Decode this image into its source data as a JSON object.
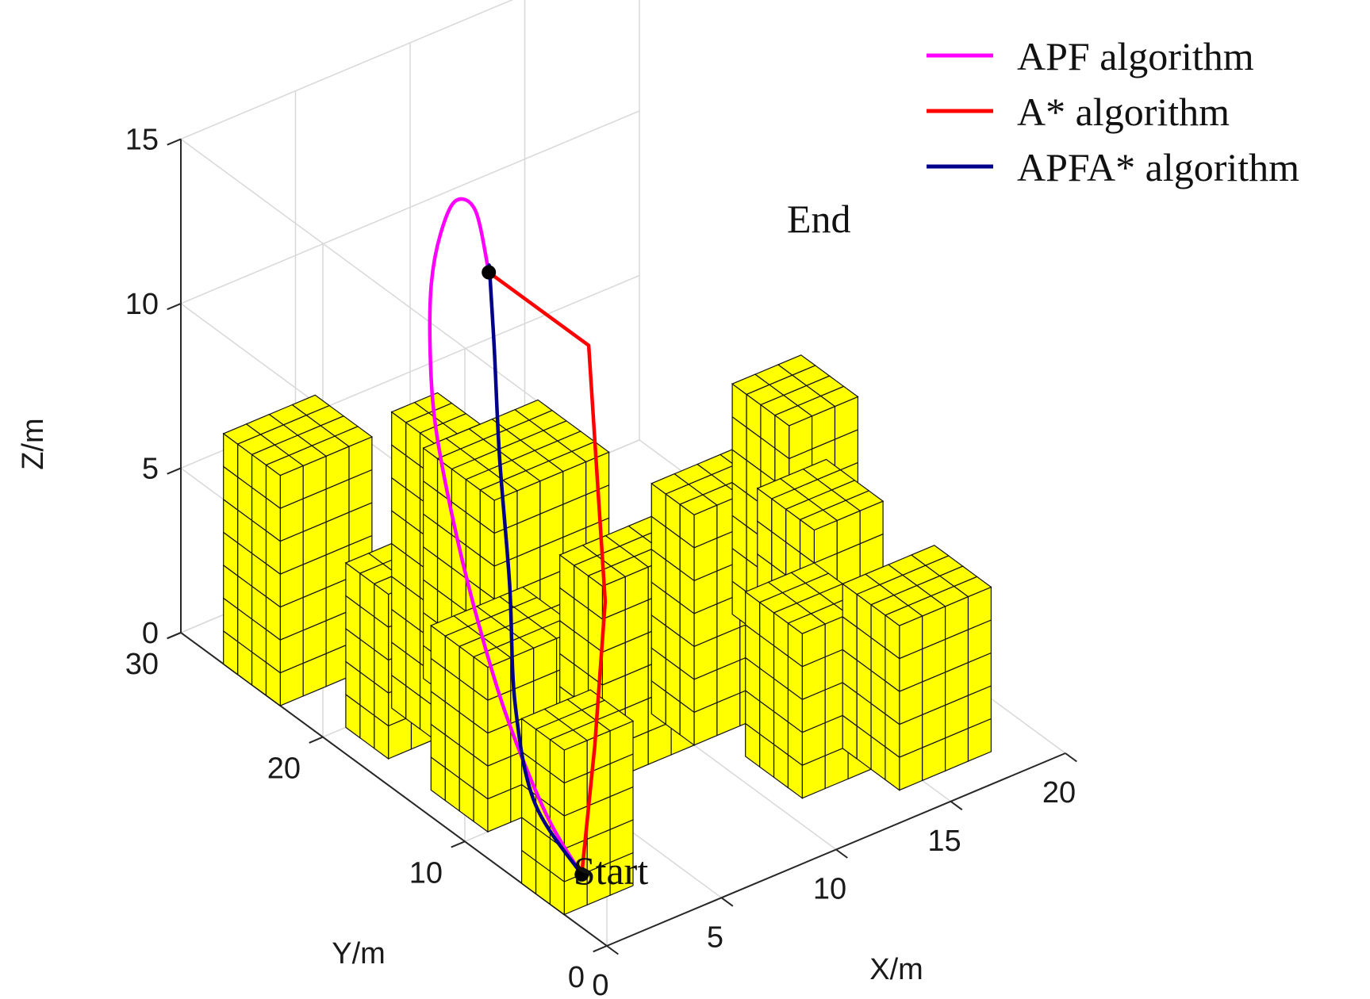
{
  "chart_data": {
    "type": "line3d",
    "xlabel": "X/m",
    "ylabel": "Y/m",
    "zlabel": "Z/m",
    "xlim": [
      0,
      20
    ],
    "ylim": [
      0,
      30
    ],
    "zlim": [
      0,
      15
    ],
    "xticks": [
      "0",
      "5",
      "10",
      "15",
      "20"
    ],
    "yticks": [
      "0",
      "10",
      "20",
      "30"
    ],
    "zticks": [
      "0",
      "5",
      "10",
      "15"
    ],
    "grid": true,
    "legend_position": "top-right",
    "obstacle_color": "#ffff00",
    "obstacles": [
      {
        "x": [
          0,
          3
        ],
        "y": [
          3,
          6
        ],
        "z": [
          0,
          5
        ]
      },
      {
        "x": [
          1,
          5
        ],
        "y": [
          10,
          14
        ],
        "z": [
          0,
          5
        ]
      },
      {
        "x": [
          3,
          5
        ],
        "y": [
          17,
          20
        ],
        "z": [
          0,
          9
        ]
      },
      {
        "x": [
          5,
          10
        ],
        "y": [
          16,
          21
        ],
        "z": [
          0,
          7
        ]
      },
      {
        "x": [
          0,
          4
        ],
        "y": [
          23,
          27
        ],
        "z": [
          0,
          7
        ]
      },
      {
        "x": [
          1,
          4
        ],
        "y": [
          17,
          20
        ],
        "z": [
          0,
          5
        ]
      },
      {
        "x": [
          6,
          10
        ],
        "y": [
          10,
          13
        ],
        "z": [
          0,
          6
        ]
      },
      {
        "x": [
          10,
          14
        ],
        "y": [
          10,
          13
        ],
        "z": [
          0,
          7
        ]
      },
      {
        "x": [
          11,
          14
        ],
        "y": [
          4,
          8
        ],
        "z": [
          0,
          5
        ]
      },
      {
        "x": [
          14,
          17
        ],
        "y": [
          8,
          12
        ],
        "z": [
          0,
          6
        ]
      },
      {
        "x": [
          14,
          18
        ],
        "y": [
          2,
          6
        ],
        "z": [
          0,
          5
        ]
      },
      {
        "x": [
          16,
          19
        ],
        "y": [
          13,
          17
        ],
        "z": [
          0,
          7
        ]
      }
    ],
    "start_point": {
      "x": 2,
      "y": 5,
      "z": 0
    },
    "end_point": {
      "x": 6,
      "y": 18,
      "z": 13
    },
    "series": [
      {
        "name": "APF algorithm",
        "color": "#ff00ff",
        "x": [
          2,
          1.4,
          0.9,
          0.8,
          1.0,
          1.5,
          2.2,
          3.0,
          3.9,
          4.8,
          5.6,
          6.0
        ],
        "y": [
          5,
          6.5,
          8.5,
          10.5,
          12.5,
          14.5,
          16.0,
          17.2,
          18.0,
          18.4,
          18.3,
          18
        ],
        "z": [
          0,
          1.5,
          4.0,
          6.5,
          8.8,
          10.8,
          12.4,
          13.8,
          14.8,
          15.4,
          14.9,
          13
        ]
      },
      {
        "name": "A* algorithm",
        "color": "#ff0000",
        "x": [
          2,
          3.5,
          5.5,
          8.5,
          6
        ],
        "y": [
          5,
          6.5,
          9,
          15,
          18
        ],
        "z": [
          0,
          3,
          6,
          11,
          13
        ]
      },
      {
        "name": "APFA* algorithm",
        "color": "#00008b",
        "x": [
          2,
          1.8,
          2.5,
          3.5,
          4.3,
          5.0,
          5.6,
          6.0
        ],
        "y": [
          5,
          8.0,
          10.5,
          12.5,
          14.5,
          16.0,
          17.3,
          18
        ],
        "z": [
          0,
          1.3,
          3.3,
          6.0,
          9.0,
          11.6,
          13.4,
          13
        ]
      }
    ],
    "annotations": [
      {
        "text": "Start",
        "at": "start_point"
      },
      {
        "text": "End",
        "at": "end_point"
      }
    ]
  }
}
